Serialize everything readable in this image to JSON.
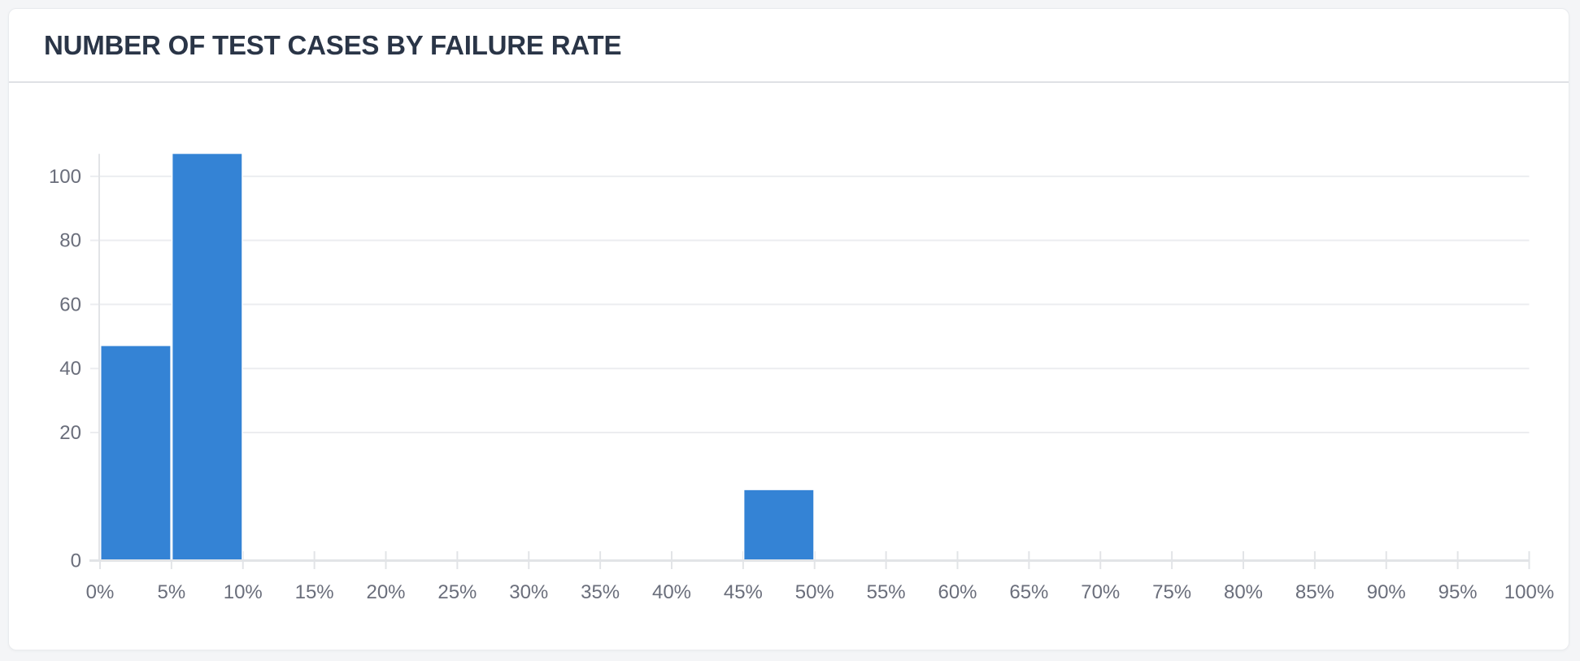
{
  "card": {
    "title": "NUMBER OF TEST CASES BY FAILURE RATE"
  },
  "chart_data": {
    "type": "bar",
    "title": "NUMBER OF TEST CASES BY FAILURE RATE",
    "xlabel": "",
    "ylabel": "",
    "categories": [
      "0%-5%",
      "5%-10%",
      "10%-15%",
      "15%-20%",
      "20%-25%",
      "25%-30%",
      "30%-35%",
      "35%-40%",
      "40%-45%",
      "45%-50%",
      "50%-55%",
      "55%-60%",
      "60%-65%",
      "65%-70%",
      "70%-75%",
      "75%-80%",
      "80%-85%",
      "85%-90%",
      "90%-95%",
      "95%-100%"
    ],
    "values": [
      47,
      107,
      0,
      0,
      0,
      0,
      0,
      0,
      0,
      11,
      0,
      0,
      0,
      0,
      0,
      0,
      0,
      0,
      0,
      0
    ],
    "x_axis_labels": [
      "0%",
      "5%",
      "10%",
      "15%",
      "20%",
      "25%",
      "30%",
      "35%",
      "40%",
      "45%",
      "50%",
      "55%",
      "60%",
      "65%",
      "70%",
      "75%",
      "80%",
      "85%",
      "90%",
      "95%",
      "100%"
    ],
    "y_axis_labels": [
      "0",
      "20",
      "40",
      "60",
      "80",
      "100"
    ],
    "y_tick_values": [
      0,
      20,
      40,
      60,
      80,
      100
    ],
    "y_scale_stops": [
      0,
      10,
      20,
      40,
      60,
      80,
      100
    ],
    "x_range_percent": [
      0,
      100
    ],
    "y_max": 107,
    "grid": "horizontal",
    "legend": "none",
    "colors": {
      "bar": "#3483d5",
      "gridline": "#ecedf0",
      "axis": "#e2e4e7",
      "tick_label": "#6a6e7b",
      "title": "#2a3547",
      "card_background": "#ffffff",
      "page_background": "#f4f5f7"
    }
  }
}
